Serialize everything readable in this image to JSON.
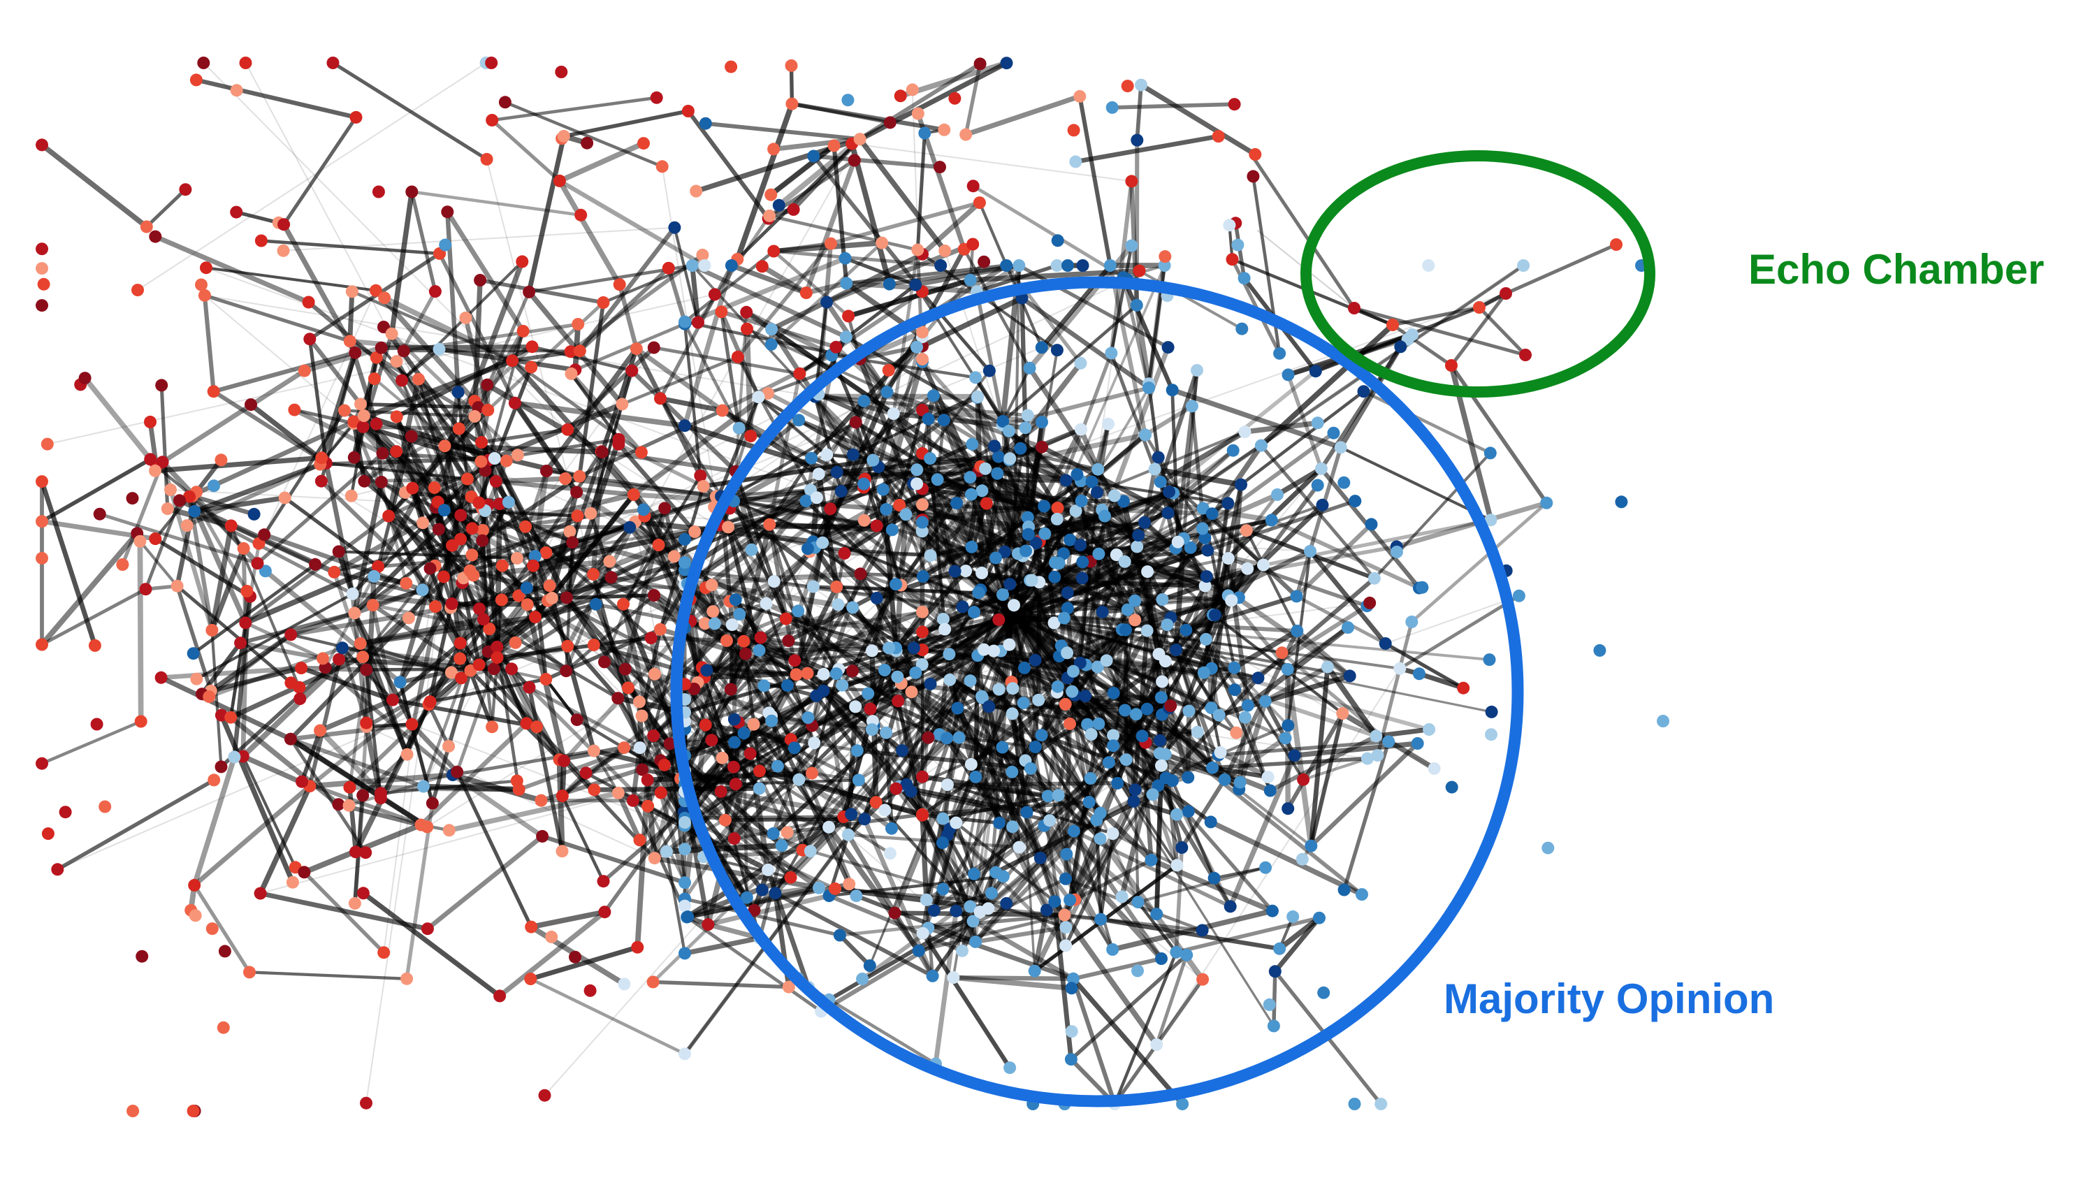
{
  "annotations": {
    "echo_chamber": {
      "label": "Echo Chamber",
      "color": "#0a8a1c"
    },
    "majority_opinion": {
      "label": "Majority Opinion",
      "color": "#1a6fe0"
    }
  },
  "colors": {
    "edge": "#000000",
    "red_shades": [
      "#8c0d1a",
      "#b8141e",
      "#d6261f",
      "#e8432e",
      "#f0654a",
      "#f79579"
    ],
    "blue_shades": [
      "#0b3b82",
      "#1864aa",
      "#2f7fc0",
      "#4a96ce",
      "#72b0dc",
      "#a6cde8",
      "#d3e5f4"
    ]
  }
}
